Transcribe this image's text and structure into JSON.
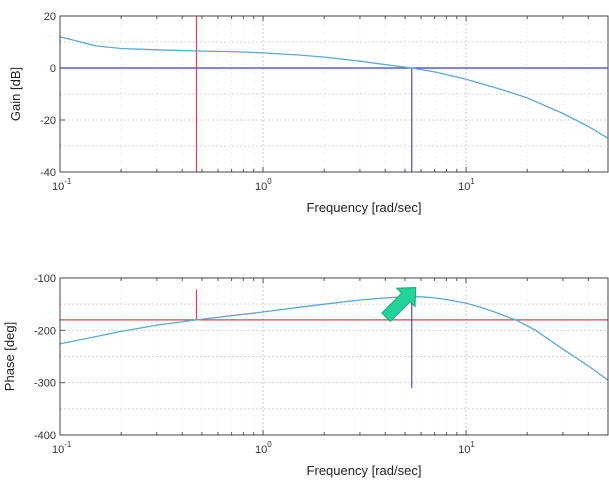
{
  "chart_data": [
    {
      "type": "line",
      "xlabel": "Frequency [rad/sec]",
      "ylabel": "Gain [dB]",
      "x_scale": "log",
      "xlim": [
        0.1,
        50
      ],
      "ylim": [
        -40,
        20
      ],
      "yticks": [
        -40,
        -20,
        0,
        20
      ],
      "xticks": [
        {
          "base": "10",
          "exp": "-1",
          "value": 0.1
        },
        {
          "base": "10",
          "exp": "0",
          "value": 1
        },
        {
          "base": "10",
          "exp": "1",
          "value": 10
        }
      ],
      "grid": true,
      "series": [
        {
          "color": "#5aa9d8",
          "x": [
            0.1,
            0.15,
            0.2,
            0.3,
            0.5,
            0.7,
            1.0,
            1.5,
            2.0,
            3.0,
            4.0,
            5.4,
            7.0,
            10.0,
            15.0,
            20.0,
            30.0,
            40.0,
            50.0
          ],
          "y": [
            12,
            8.5,
            7.5,
            7.0,
            6.5,
            6.3,
            5.8,
            5.0,
            4.2,
            2.6,
            1.3,
            0,
            -1.5,
            -4.3,
            -8.3,
            -11.5,
            -17.5,
            -22.5,
            -27
          ]
        }
      ],
      "reference_lines": [
        {
          "orientation": "horizontal",
          "value": 0,
          "color": "#3b3bd6"
        },
        {
          "orientation": "vertical",
          "value": 0.47,
          "color": "#e0404a",
          "from": -40,
          "to": 20
        },
        {
          "orientation": "vertical",
          "value": 5.4,
          "color": "#5548c8",
          "from": -40,
          "to": 0
        }
      ]
    },
    {
      "type": "line",
      "xlabel": "Frequency [rad/sec]",
      "ylabel": "Phase [deg]",
      "x_scale": "log",
      "xlim": [
        0.1,
        50
      ],
      "ylim": [
        -400,
        -100
      ],
      "yticks": [
        -400,
        -300,
        -200,
        -100
      ],
      "xticks": [
        {
          "base": "10",
          "exp": "-1",
          "value": 0.1
        },
        {
          "base": "10",
          "exp": "0",
          "value": 1
        },
        {
          "base": "10",
          "exp": "1",
          "value": 10
        }
      ],
      "grid": true,
      "series": [
        {
          "color": "#5aa9d8",
          "x": [
            0.1,
            0.15,
            0.2,
            0.3,
            0.47,
            0.7,
            1.0,
            1.5,
            2.0,
            3.0,
            4.0,
            5.0,
            6.0,
            7.0,
            8.0,
            10.0,
            12.0,
            15.0,
            18.0,
            22.0,
            30.0,
            40.0,
            50.0
          ],
          "y": [
            -226,
            -212,
            -202,
            -190,
            -180,
            -172,
            -165,
            -156,
            -150,
            -142,
            -138,
            -136,
            -136,
            -138,
            -141,
            -148,
            -157,
            -170,
            -182,
            -200,
            -236,
            -268,
            -295
          ]
        }
      ],
      "reference_lines": [
        {
          "orientation": "horizontal",
          "value": -180,
          "color": "#e0404a"
        },
        {
          "orientation": "vertical",
          "value": 0.47,
          "color": "#e0404a",
          "from": -180,
          "to": -122
        },
        {
          "orientation": "vertical",
          "value": 5.4,
          "color": "#5548c8",
          "from": -310,
          "to": -122
        }
      ],
      "annotations": [
        {
          "kind": "arrow",
          "color": "#22d39a",
          "points_to_x": 5.4,
          "points_to_y": -122
        }
      ]
    }
  ]
}
